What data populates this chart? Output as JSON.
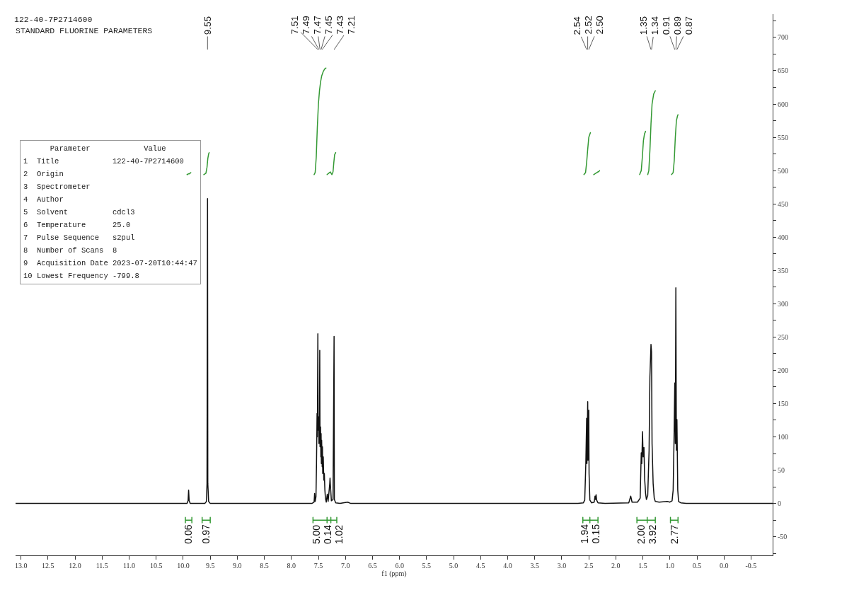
{
  "chart_data": [
    {
      "type": "line",
      "title": "122-40-7P2714600",
      "subtitle": "STANDARD FLUORINE PARAMETERS",
      "xlabel": "f1 (ppm)",
      "xlim": [
        13.1,
        -0.9
      ],
      "xticks": [
        {
          "value": 13,
          "label": "13.0"
        },
        12.5,
        {
          "value": 12,
          "label": "12.0"
        },
        11.5,
        {
          "value": 11,
          "label": "11.0"
        },
        10.5,
        {
          "value": 10,
          "label": "10.0"
        },
        9.5,
        {
          "value": 9,
          "label": "9.0"
        },
        8.5,
        {
          "value": 8,
          "label": "8.0"
        },
        7.5,
        {
          "value": 7,
          "label": "7.0"
        },
        6.5,
        {
          "value": 6,
          "label": "6.0"
        },
        5.5,
        {
          "value": 5,
          "label": "5.0"
        },
        4.5,
        {
          "value": 4,
          "label": "4.0"
        },
        3.5,
        {
          "value": 3,
          "label": "3.0"
        },
        2.5,
        {
          "value": 2,
          "label": "2.0"
        },
        1.5,
        {
          "value": 1,
          "label": "1.0"
        },
        0.5,
        {
          "value": 0,
          "label": "0.0"
        },
        -0.5
      ],
      "ylim": [
        -78,
        735
      ],
      "yticks": [
        {
          "value": -75,
          "label": null
        },
        -50,
        {
          "value": -25,
          "label": null
        },
        0,
        {
          "value": 25,
          "label": null
        },
        50,
        {
          "value": 75,
          "label": null
        },
        100,
        {
          "value": 125,
          "label": null
        },
        150,
        {
          "value": 175,
          "label": null
        },
        200,
        {
          "value": 225,
          "label": null
        },
        250,
        {
          "value": 275,
          "label": null
        },
        300,
        {
          "value": 325,
          "label": null
        },
        350,
        {
          "value": 375,
          "label": null
        },
        400,
        {
          "value": 425,
          "label": null
        },
        450,
        {
          "value": 475,
          "label": null
        },
        500,
        {
          "value": 525,
          "label": null
        },
        550,
        {
          "value": 575,
          "label": null
        },
        600,
        {
          "value": 625,
          "label": null
        },
        650,
        {
          "value": 675,
          "label": null
        },
        700,
        {
          "value": 725,
          "label": null
        }
      ],
      "grid": false,
      "series": [
        {
          "color": "#111111",
          "x": [
            13.1,
            10.0,
            9.93,
            9.91,
            9.9,
            9.89,
            9.87,
            9.6,
            9.57,
            9.56,
            9.55,
            9.545,
            9.53,
            9.5,
            7.62,
            7.58,
            7.57,
            7.56,
            7.545,
            7.535,
            7.525,
            7.52,
            7.51,
            7.505,
            7.495,
            7.49,
            7.48,
            7.475,
            7.47,
            7.46,
            7.455,
            7.45,
            7.445,
            7.44,
            7.43,
            7.425,
            7.42,
            7.41,
            7.4,
            7.39,
            7.38,
            7.37,
            7.355,
            7.335,
            7.32,
            7.29,
            7.285,
            7.28,
            7.26,
            7.23,
            7.21,
            7.205,
            7.18,
            7.1,
            6.96,
            6.9,
            2.7,
            2.6,
            2.575,
            2.555,
            2.54,
            2.535,
            2.52,
            2.515,
            2.5,
            2.495,
            2.48,
            2.45,
            2.4,
            2.385,
            2.375,
            2.365,
            2.355,
            2.33,
            2.2,
            1.76,
            1.725,
            1.7,
            1.6,
            1.55,
            1.53,
            1.52,
            1.507,
            1.495,
            1.48,
            1.467,
            1.45,
            1.435,
            1.41,
            1.385,
            1.37,
            1.35,
            1.34,
            1.33,
            1.31,
            1.29,
            1.27,
            1.2,
            1.05,
            1.0,
            0.96,
            0.94,
            0.925,
            0.91,
            0.9,
            0.89,
            0.88,
            0.87,
            0.855,
            0.84,
            0.8,
            0.7,
            -0.9
          ],
          "values": [
            0,
            0,
            0,
            4,
            20,
            4,
            0,
            0,
            3,
            30,
            458,
            30,
            3,
            0,
            0,
            2,
            15,
            3,
            10,
            60,
            135,
            100,
            255,
            110,
            130,
            90,
            125,
            230,
            85,
            115,
            70,
            105,
            60,
            95,
            55,
            85,
            45,
            70,
            35,
            45,
            20,
            8,
            2,
            14,
            3,
            30,
            38,
            30,
            4,
            6,
            251,
            6,
            1,
            0,
            2,
            0,
            0,
            1,
            5,
            60,
            128,
            60,
            153,
            65,
            140,
            45,
            5,
            1,
            2,
            11,
            6,
            13,
            5,
            1,
            0,
            1,
            11,
            2,
            2,
            8,
            76,
            60,
            108,
            70,
            84,
            37,
            15,
            6,
            12,
            80,
            190,
            239,
            228,
            90,
            30,
            8,
            3,
            2,
            3,
            2,
            4,
            20,
            90,
            181,
            90,
            324,
            80,
            126,
            20,
            3,
            1,
            0,
            0
          ]
        },
        {
          "color": "#339933",
          "x": [
            9.93,
            9.92,
            9.91,
            9.9,
            9.89,
            9.88,
            9.87,
            9.86,
            9.75,
            9.62,
            9.58,
            9.56,
            9.545,
            9.53,
            9.52,
            8.5,
            7.58,
            7.56,
            7.54,
            7.52,
            7.5,
            7.48,
            7.46,
            7.44,
            7.41,
            7.38,
            7.36,
            7.345,
            7.34,
            7.31,
            7.28,
            7.25,
            7.23,
            7.215,
            7.2,
            7.18,
            5.0,
            2.59,
            2.56,
            2.54,
            2.52,
            2.5,
            2.47,
            2.45,
            2.41,
            2.39,
            2.37,
            2.35,
            2.33,
            2.31,
            2.3,
            2.0,
            1.56,
            1.53,
            1.51,
            1.49,
            1.47,
            1.45,
            1.43,
            1.41,
            1.39,
            1.37,
            1.35,
            1.33,
            1.3,
            1.27,
            1.1,
            0.97,
            0.94,
            0.92,
            0.9,
            0.88,
            0.86,
            0.85
          ],
          "values": [
            494,
            494,
            495,
            495,
            495,
            496,
            496,
            497,
            null,
            494,
            496,
            505,
            518,
            525,
            527,
            null,
            494,
            497,
            520,
            565,
            600,
            620,
            633,
            642,
            649,
            653,
            654,
            null,
            494,
            496,
            498,
            494,
            498,
            512,
            524,
            527,
            null,
            494,
            497,
            512,
            532,
            550,
            557,
            null,
            494,
            495,
            496,
            497,
            498,
            499,
            500,
            null,
            494,
            500,
            520,
            545,
            555,
            559,
            null,
            494,
            500,
            530,
            570,
            600,
            615,
            620,
            null,
            494,
            497,
            515,
            550,
            575,
            582,
            584
          ]
        },
        {
          "color": "#339933",
          "x": [
            9.96,
            9.96,
            9.96,
            9.84,
            9.84,
            9.84,
            9.75,
            9.65,
            9.65,
            9.65,
            9.5,
            9.5,
            9.5,
            8.5,
            7.6,
            7.6,
            7.6,
            7.34,
            7.34,
            7.34,
            7.34,
            7.27,
            7.27,
            7.27,
            7.27,
            7.16,
            7.16,
            7.16,
            5.0,
            2.61,
            2.61,
            2.61,
            2.48,
            2.48,
            2.48,
            2.48,
            2.33,
            2.33,
            2.33,
            2.0,
            1.61,
            1.61,
            1.61,
            1.42,
            1.42,
            1.42,
            1.42,
            1.27,
            1.27,
            1.27,
            1.1,
            0.99,
            0.99,
            0.99,
            0.85,
            0.85,
            0.85
          ],
          "values": [
            -21,
            -29,
            -25,
            -25,
            -21,
            -29,
            null,
            -21,
            -29,
            -25,
            -25,
            -21,
            -29,
            null,
            -21,
            -29,
            -25,
            -25,
            -21,
            -29,
            -25,
            -25,
            -21,
            -29,
            -25,
            -25,
            -21,
            -29,
            null,
            -21,
            -29,
            -25,
            -25,
            -21,
            -29,
            -25,
            -25,
            -21,
            -29,
            null,
            -21,
            -29,
            -25,
            -25,
            -21,
            -29,
            -25,
            -25,
            -21,
            -29,
            null,
            -21,
            -29,
            -25,
            -25,
            -21,
            -29
          ]
        }
      ],
      "annotations": [
        "9.55",
        "7.51",
        "7.49",
        "7.47",
        "7.45",
        "7.43",
        "7.21",
        "2.54",
        "2.52",
        "2.50",
        "1.35",
        "1.34",
        "0.91",
        "0.89",
        "0.87",
        {
          "text": "0.06",
          "x": 9.9,
          "y": -25
        },
        {
          "text": "0.97",
          "x": 9.575,
          "y": -25
        },
        {
          "text": "5.00",
          "x": 7.47,
          "y": -25
        },
        {
          "text": "0.14",
          "x": 7.305,
          "y": -25
        },
        {
          "text": "1.02",
          "x": 7.215,
          "y": -25
        },
        {
          "text": "1.94",
          "x": 2.545,
          "y": -25
        },
        {
          "text": "0.15",
          "x": 2.405,
          "y": -25
        },
        {
          "text": "2.00",
          "x": 1.515,
          "y": -25
        },
        {
          "text": "3.92",
          "x": 1.345,
          "y": -25
        },
        {
          "text": "2.77",
          "x": 0.92,
          "y": -25
        }
      ]
    },
    {
      "type": "other",
      "annotations": [
        "      Parameter            Value",
        "1  Title            122-40-7P2714600",
        "2  Origin",
        "3  Spectrometer",
        "4  Author",
        "5  Solvent          cdcl3",
        "6  Temperature      25.0",
        "7  Pulse Sequence   s2pul",
        "8  Number of Scans  8",
        "9  Acquisition Date 2023-07-20T10:44:47",
        "10 Lowest Frequency -799.8"
      ]
    }
  ]
}
